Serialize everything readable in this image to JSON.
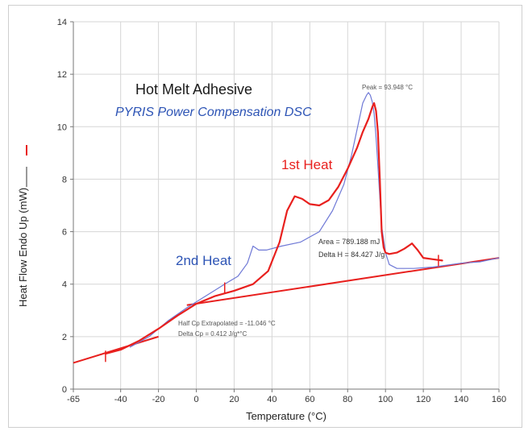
{
  "chart_data": {
    "type": "line",
    "title": "Hot Melt Adhesive",
    "subtitle": "PYRIS Power Compensation DSC",
    "xlabel": "Temperature (°C)",
    "ylabel": "Heat Flow Endo Up (mW)",
    "xlim": [
      -65,
      160
    ],
    "ylim": [
      0,
      14
    ],
    "x_ticks": [
      -65,
      -40,
      -20,
      0,
      20,
      40,
      60,
      80,
      100,
      120,
      140,
      160
    ],
    "x_tick_labels": [
      "-65",
      "-40",
      "-20",
      "0",
      "20",
      "40",
      "60",
      "80",
      "100",
      "120",
      "140",
      "160"
    ],
    "y_ticks": [
      0,
      2,
      4,
      6,
      8,
      10,
      12,
      14
    ],
    "y_tick_labels": [
      "0",
      "2",
      "4",
      "6",
      "8",
      "10",
      "12",
      "14"
    ],
    "grid": true,
    "colors": {
      "first_heat": "#e8201e",
      "second_heat": "#6f79d6",
      "subtitle": "#2d54b5",
      "grid": "#d6d6d6"
    },
    "series": [
      {
        "name": "1st Heat",
        "color": "#e8201e",
        "x": [
          -48,
          -40,
          -30,
          -20,
          -10,
          0,
          10,
          20,
          30,
          38,
          44,
          48,
          52,
          56,
          60,
          65,
          70,
          75,
          80,
          85,
          88,
          91,
          93,
          94,
          95,
          96,
          97,
          98,
          99,
          100,
          102,
          106,
          110,
          114,
          117,
          120,
          125,
          130
        ],
        "y": [
          1.35,
          1.5,
          1.85,
          2.3,
          2.8,
          3.25,
          3.55,
          3.75,
          4.0,
          4.5,
          5.6,
          6.8,
          7.35,
          7.25,
          7.05,
          7.0,
          7.2,
          7.7,
          8.4,
          9.2,
          9.8,
          10.3,
          10.75,
          10.9,
          10.6,
          9.8,
          8.0,
          6.0,
          5.4,
          5.2,
          5.15,
          5.2,
          5.35,
          5.55,
          5.3,
          5.0,
          4.95,
          4.9
        ]
      },
      {
        "name": "2nd Heat",
        "color": "#6f79d6",
        "x": [
          -35,
          -25,
          -15,
          -5,
          5,
          15,
          22,
          27,
          30,
          33,
          37,
          45,
          55,
          65,
          72,
          78,
          82,
          85,
          88,
          90,
          91,
          92,
          93,
          94,
          95,
          96,
          97,
          98,
          100,
          102,
          106,
          115,
          125,
          140,
          150,
          160
        ],
        "y": [
          1.6,
          2.0,
          2.6,
          3.1,
          3.55,
          4.0,
          4.3,
          4.8,
          5.45,
          5.3,
          5.3,
          5.45,
          5.6,
          6.0,
          6.8,
          7.8,
          8.9,
          9.9,
          10.9,
          11.2,
          11.3,
          11.2,
          10.95,
          10.5,
          9.6,
          8.5,
          7.3,
          6.2,
          5.2,
          4.75,
          4.6,
          4.6,
          4.65,
          4.8,
          4.85,
          5.0
        ]
      }
    ],
    "baselines": [
      {
        "x": [
          -65,
          -20
        ],
        "y": [
          1.0,
          2.0
        ]
      },
      {
        "x": [
          -5,
          160
        ],
        "y": [
          3.2,
          5.0
        ]
      }
    ],
    "tick_marks": [
      {
        "x": -48,
        "y": 1.25
      },
      {
        "x": 15,
        "y": 3.85
      },
      {
        "x": 128,
        "y": 4.9
      }
    ],
    "annotations": {
      "first_heat_label": "1st Heat",
      "second_heat_label": "2nd Heat",
      "peak": "Peak = 93.948 °C",
      "area": "Area = 789.188 mJ",
      "delta_h": "Delta H = 84.427 J/g",
      "half_cp": "Half Cp Extrapolated = -11.046 °C",
      "delta_cp": "Delta Cp = 0.412 J/g*°C"
    }
  }
}
